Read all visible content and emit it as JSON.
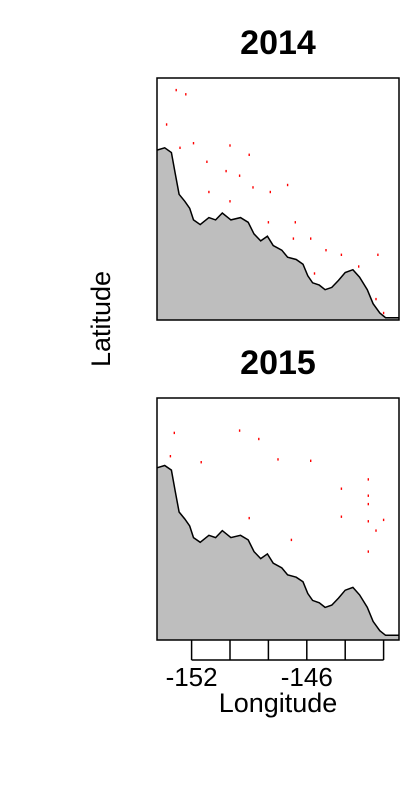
{
  "chart_data": {
    "type": "scatter",
    "xlabel": "Longitude",
    "ylabel": "Latitude",
    "xlim": [
      -153.8,
      -141.2
    ],
    "x_ticks": [
      -152,
      -150,
      -148,
      -146,
      -144,
      -142
    ],
    "x_tick_labels": [
      {
        "value": -152,
        "label": "-152"
      },
      {
        "value": -146,
        "label": "-146"
      }
    ],
    "land_color": "#bebebe",
    "point_color": "#ff0000",
    "grid": false,
    "panels": [
      {
        "title": "2014",
        "points": [
          [
            -152.8,
            59.74
          ],
          [
            -152.3,
            59.65
          ],
          [
            -153.3,
            59.0
          ],
          [
            -152.6,
            58.5
          ],
          [
            -151.9,
            58.6
          ],
          [
            -150.0,
            58.55
          ],
          [
            -149.0,
            58.35
          ],
          [
            -151.2,
            58.2
          ],
          [
            -150.2,
            58.0
          ],
          [
            -149.5,
            57.9
          ],
          [
            -148.8,
            57.65
          ],
          [
            -147.9,
            57.55
          ],
          [
            -147.0,
            57.7
          ],
          [
            -151.1,
            57.55
          ],
          [
            -150.0,
            57.35
          ],
          [
            -148.0,
            56.9
          ],
          [
            -146.6,
            56.9
          ],
          [
            -146.7,
            56.55
          ],
          [
            -145.8,
            56.55
          ],
          [
            -145.0,
            56.3
          ],
          [
            -144.2,
            56.2
          ],
          [
            -142.3,
            56.2
          ],
          [
            -143.3,
            55.95
          ],
          [
            -145.6,
            55.8
          ],
          [
            -142.4,
            55.25
          ],
          [
            -142.0,
            54.95
          ]
        ],
        "coastline": [
          [
            -153.8,
            58.45
          ],
          [
            -153.4,
            58.5
          ],
          [
            -153.05,
            58.4
          ],
          [
            -152.85,
            57.95
          ],
          [
            -152.65,
            57.5
          ],
          [
            -152.35,
            57.35
          ],
          [
            -152.1,
            57.2
          ],
          [
            -151.9,
            56.95
          ],
          [
            -151.55,
            56.85
          ],
          [
            -151.1,
            57.0
          ],
          [
            -150.75,
            56.95
          ],
          [
            -150.4,
            57.1
          ],
          [
            -149.95,
            56.95
          ],
          [
            -149.45,
            57.0
          ],
          [
            -149.05,
            56.9
          ],
          [
            -148.75,
            56.65
          ],
          [
            -148.4,
            56.5
          ],
          [
            -148.05,
            56.6
          ],
          [
            -147.75,
            56.4
          ],
          [
            -147.3,
            56.3
          ],
          [
            -147.0,
            56.15
          ],
          [
            -146.55,
            56.1
          ],
          [
            -146.2,
            56.0
          ],
          [
            -145.95,
            55.75
          ],
          [
            -145.7,
            55.6
          ],
          [
            -145.35,
            55.55
          ],
          [
            -145.05,
            55.45
          ],
          [
            -144.7,
            55.5
          ],
          [
            -144.35,
            55.65
          ],
          [
            -144.0,
            55.82
          ],
          [
            -143.6,
            55.88
          ],
          [
            -143.25,
            55.72
          ],
          [
            -142.85,
            55.45
          ],
          [
            -142.55,
            55.15
          ],
          [
            -142.2,
            54.95
          ],
          [
            -141.9,
            54.85
          ],
          [
            -141.2,
            54.85
          ]
        ]
      },
      {
        "title": "2015",
        "points": [
          [
            -152.9,
            59.05
          ],
          [
            -149.5,
            59.1
          ],
          [
            -148.5,
            58.92
          ],
          [
            -153.1,
            58.55
          ],
          [
            -151.5,
            58.42
          ],
          [
            -147.5,
            58.48
          ],
          [
            -145.8,
            58.45
          ],
          [
            -142.8,
            58.05
          ],
          [
            -144.2,
            57.85
          ],
          [
            -142.8,
            57.7
          ],
          [
            -142.8,
            57.52
          ],
          [
            -149.0,
            57.22
          ],
          [
            -144.2,
            57.25
          ],
          [
            -142.8,
            57.15
          ],
          [
            -142.0,
            57.18
          ],
          [
            -142.4,
            56.95
          ],
          [
            -146.8,
            56.75
          ],
          [
            -142.8,
            56.5
          ]
        ],
        "coastline": [
          [
            -153.8,
            58.3
          ],
          [
            -153.4,
            58.35
          ],
          [
            -153.05,
            58.25
          ],
          [
            -152.85,
            57.8
          ],
          [
            -152.65,
            57.35
          ],
          [
            -152.35,
            57.2
          ],
          [
            -152.1,
            57.05
          ],
          [
            -151.9,
            56.8
          ],
          [
            -151.55,
            56.7
          ],
          [
            -151.1,
            56.85
          ],
          [
            -150.75,
            56.8
          ],
          [
            -150.4,
            56.95
          ],
          [
            -149.95,
            56.8
          ],
          [
            -149.45,
            56.85
          ],
          [
            -149.05,
            56.75
          ],
          [
            -148.75,
            56.5
          ],
          [
            -148.4,
            56.35
          ],
          [
            -148.05,
            56.45
          ],
          [
            -147.75,
            56.25
          ],
          [
            -147.3,
            56.15
          ],
          [
            -147.0,
            56.0
          ],
          [
            -146.55,
            55.95
          ],
          [
            -146.2,
            55.85
          ],
          [
            -145.95,
            55.6
          ],
          [
            -145.7,
            55.45
          ],
          [
            -145.35,
            55.4
          ],
          [
            -145.05,
            55.3
          ],
          [
            -144.7,
            55.35
          ],
          [
            -144.35,
            55.5
          ],
          [
            -144.0,
            55.67
          ],
          [
            -143.6,
            55.73
          ],
          [
            -143.25,
            55.57
          ],
          [
            -142.85,
            55.3
          ],
          [
            -142.55,
            55.0
          ],
          [
            -142.2,
            54.8
          ],
          [
            -141.9,
            54.7
          ],
          [
            -141.2,
            54.7
          ]
        ]
      }
    ]
  }
}
